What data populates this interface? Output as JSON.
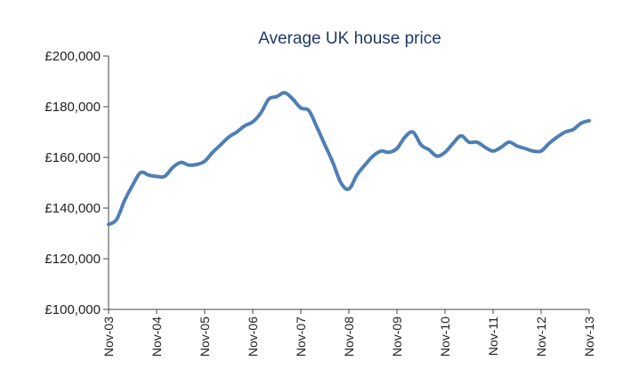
{
  "chart_data": {
    "type": "line",
    "title": "Average UK house price",
    "xlabel": "",
    "ylabel": "",
    "ylim": [
      100000,
      200000
    ],
    "yticks": [
      100000,
      120000,
      140000,
      160000,
      180000,
      200000
    ],
    "ytick_labels": [
      "£100,000",
      "£120,000",
      "£140,000",
      "£160,000",
      "£180,000",
      "£200,000"
    ],
    "xtick_labels": [
      "Nov-03",
      "Nov-04",
      "Nov-05",
      "Nov-06",
      "Nov-07",
      "Nov-08",
      "Nov-09",
      "Nov-10",
      "Nov-11",
      "Nov-12",
      "Nov-13"
    ],
    "grid": false,
    "series": [
      {
        "color": "#4f7fb3",
        "x": [
          "2003-11",
          "2004-01",
          "2004-03",
          "2004-05",
          "2004-07",
          "2004-09",
          "2004-11",
          "2005-01",
          "2005-03",
          "2005-05",
          "2005-07",
          "2005-09",
          "2005-11",
          "2006-01",
          "2006-03",
          "2006-05",
          "2006-07",
          "2006-09",
          "2006-11",
          "2007-01",
          "2007-03",
          "2007-05",
          "2007-07",
          "2007-09",
          "2007-11",
          "2008-01",
          "2008-03",
          "2008-05",
          "2008-07",
          "2008-09",
          "2008-11",
          "2009-01",
          "2009-03",
          "2009-05",
          "2009-07",
          "2009-09",
          "2009-11",
          "2010-01",
          "2010-03",
          "2010-05",
          "2010-07",
          "2010-09",
          "2010-11",
          "2011-01",
          "2011-03",
          "2011-05",
          "2011-07",
          "2011-09",
          "2011-11",
          "2012-01",
          "2012-03",
          "2012-05",
          "2012-07",
          "2012-09",
          "2012-11",
          "2013-01",
          "2013-03",
          "2013-05",
          "2013-07",
          "2013-09",
          "2013-11"
        ],
        "values": [
          133500,
          135500,
          143000,
          149000,
          154000,
          153000,
          152500,
          152500,
          156000,
          158000,
          157000,
          157200,
          158500,
          162000,
          165000,
          168000,
          170000,
          172500,
          174000,
          177500,
          183000,
          184000,
          185500,
          183000,
          179500,
          178500,
          172000,
          165000,
          158000,
          150000,
          147500,
          153000,
          157000,
          160500,
          162500,
          162000,
          163500,
          168000,
          170000,
          165000,
          163000,
          160500,
          162000,
          165500,
          168500,
          166000,
          166000,
          164000,
          162500,
          164000,
          166000,
          164500,
          163500,
          162500,
          162500,
          165500,
          168000,
          170000,
          171000,
          173500,
          174500
        ]
      }
    ]
  }
}
